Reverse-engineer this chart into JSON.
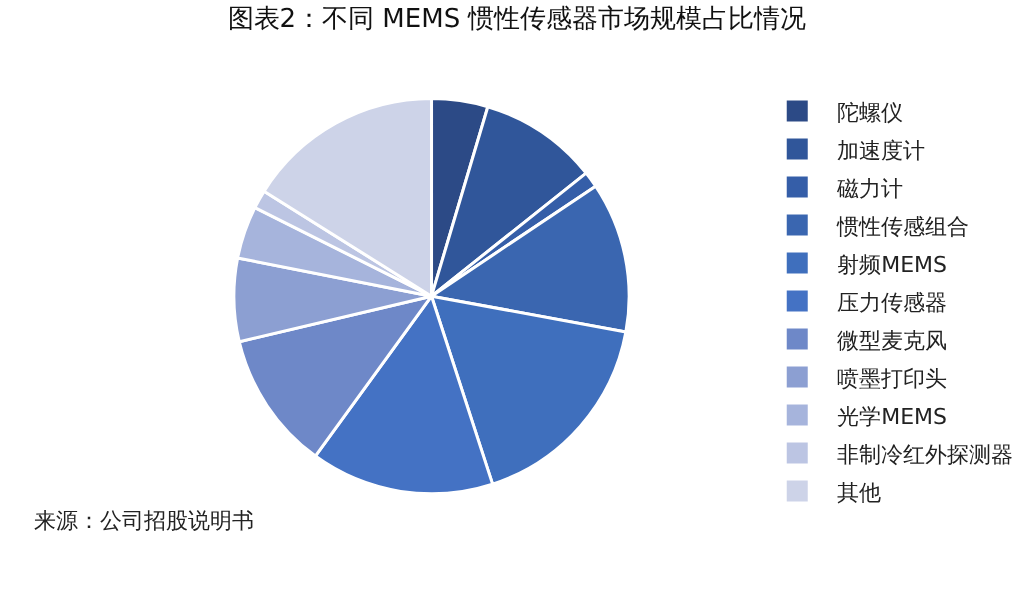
{
  "chart_data": {
    "type": "pie",
    "title": "图表2：不同 MEMS 惯性传感器市场规模占比情况",
    "categories": [
      "陀螺仪",
      "加速度计",
      "磁力计",
      "惯性传感组合",
      "射频MEMS",
      "压力传感器",
      "微型麦克风",
      "喷墨打印头",
      "光学MEMS",
      "非制冷红外探测器",
      "其他"
    ],
    "values": [
      4.6,
      9.7,
      1.3,
      12.3,
      17.1,
      15.0,
      11.3,
      6.8,
      4.3,
      1.5,
      16.1
    ],
    "colors": [
      "#2c4a86",
      "#30569a",
      "#355ea8",
      "#3a66b0",
      "#3f6fbd",
      "#4472c4",
      "#6e88c8",
      "#8c9fd2",
      "#a6b4dc",
      "#bcc5e3",
      "#cdd3e8"
    ],
    "legend": "right",
    "annotations": [
      "来源：公司招股说明书"
    ]
  }
}
